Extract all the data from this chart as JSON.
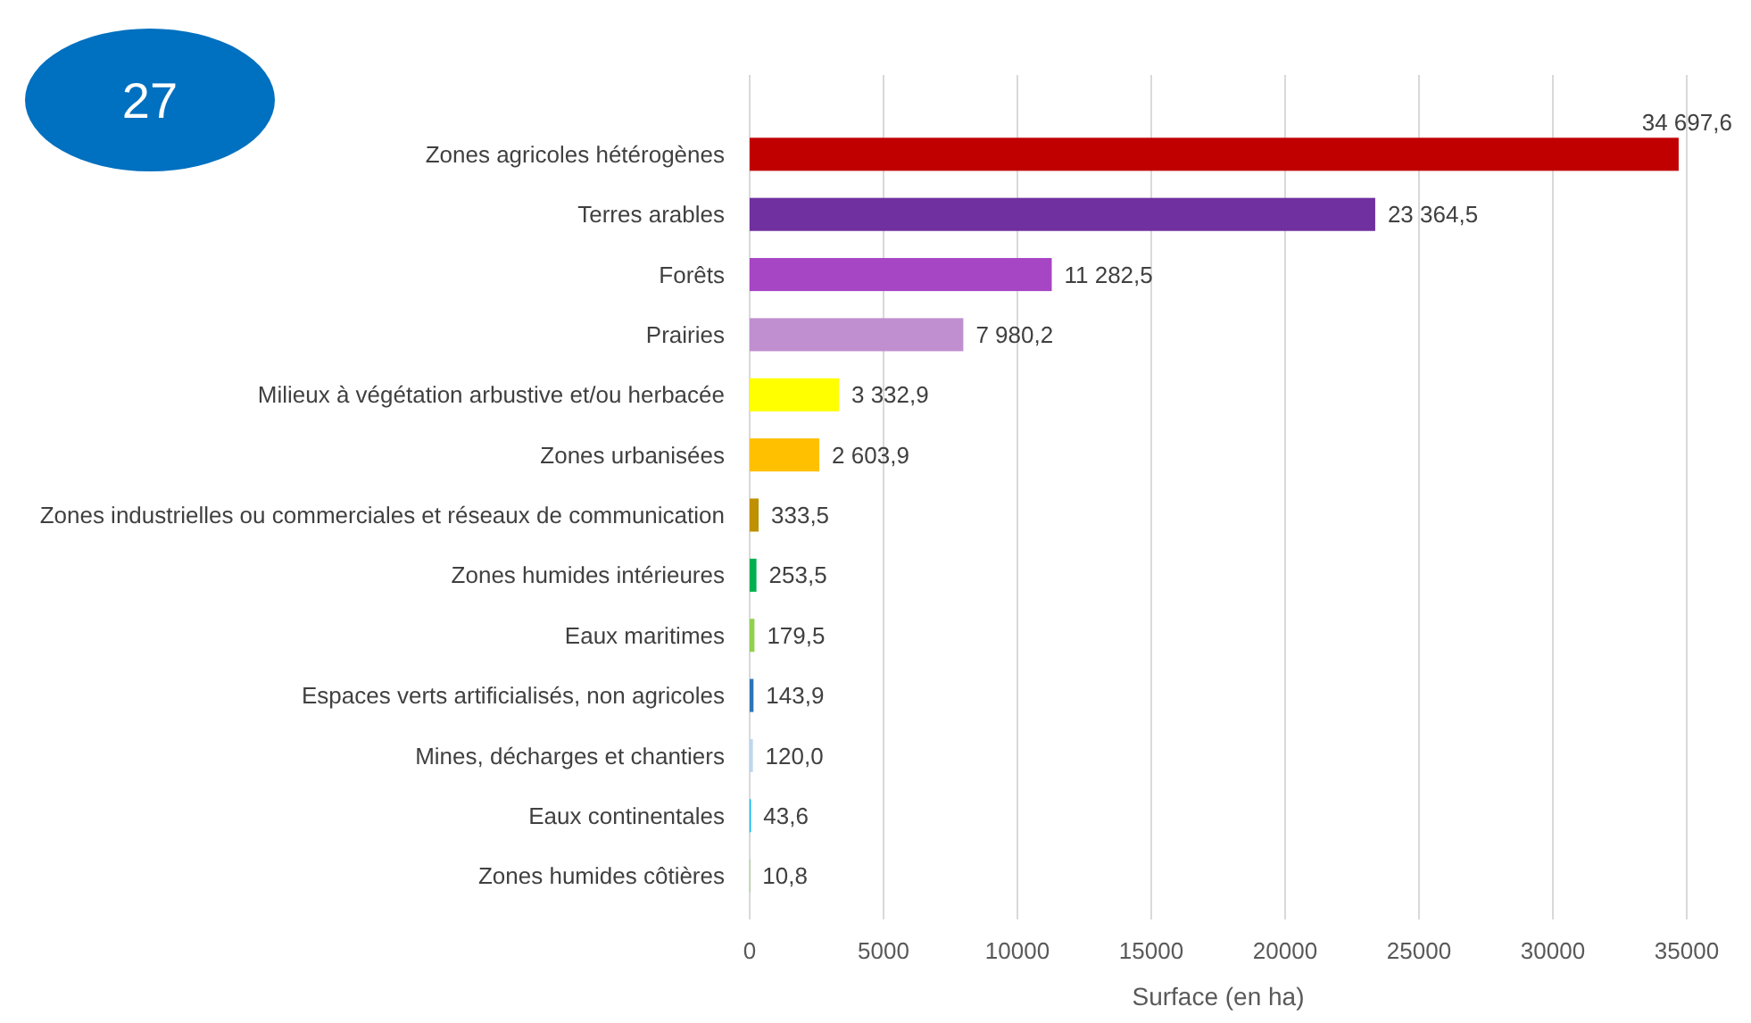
{
  "chart_data": {
    "type": "bar",
    "orientation": "horizontal",
    "xlabel": "Surface (en ha)",
    "annotations": [
      "27"
    ],
    "categories": [
      "Zones agricoles hétérogènes",
      "Terres arables",
      "Forêts",
      "Prairies",
      "Milieux à végétation arbustive et/ou herbacée",
      "Zones urbanisées",
      "Zones industrielles ou commerciales et réseaux de communication",
      "Zones humides intérieures",
      "Eaux maritimes",
      "Espaces verts artificialisés, non agricoles",
      "Mines, décharges et chantiers",
      "Eaux continentales",
      "Zones humides côtières"
    ],
    "values": [
      34697.6,
      23364.5,
      11282.5,
      7980.2,
      3332.9,
      2603.9,
      333.5,
      253.5,
      179.5,
      143.9,
      120.0,
      43.6,
      10.8
    ],
    "value_labels": [
      "34 697,6",
      "23 364,5",
      "11 282,5",
      "7 980,2",
      "3 332,9",
      "2 603,9",
      "333,5",
      "253,5",
      "179,5",
      "143,9",
      "120,0",
      "43,6",
      "10,8"
    ],
    "colors": [
      "#c00000",
      "#7030a0",
      "#a646c4",
      "#c08fcf",
      "#ffff00",
      "#ffc000",
      "#bf9000",
      "#00b050",
      "#92d050",
      "#2e75b6",
      "#bdd7ee",
      "#00b0f0",
      "#70ad47"
    ],
    "xlim": [
      0,
      35000
    ],
    "xticks": [
      0,
      5000,
      10000,
      15000,
      20000,
      25000,
      30000,
      35000
    ],
    "grid": "x"
  }
}
